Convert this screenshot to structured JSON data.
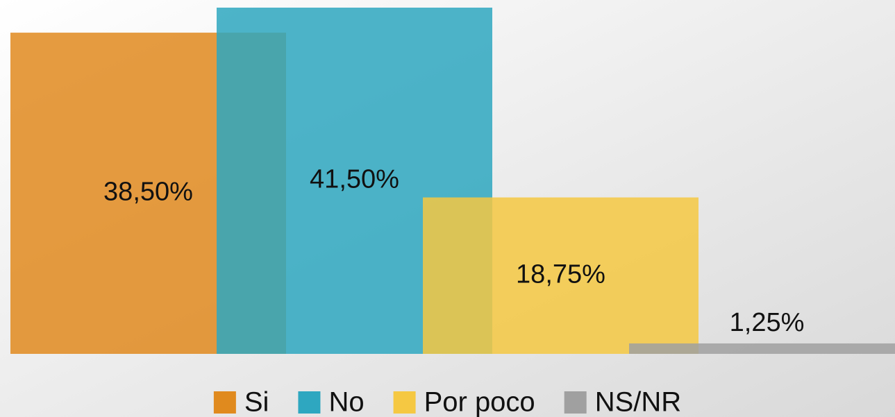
{
  "chart_data": {
    "type": "bar",
    "categories": [
      "Si",
      "No",
      "Por poco",
      "NS/NR"
    ],
    "values": [
      38.5,
      41.5,
      18.75,
      1.25
    ],
    "value_labels": [
      "38,50%",
      "41,50%",
      "18,75%",
      "1,25%"
    ],
    "colors": [
      "#e08a1e",
      "#2ea7c0",
      "#f5c842",
      "#a0a0a0"
    ]
  }
}
